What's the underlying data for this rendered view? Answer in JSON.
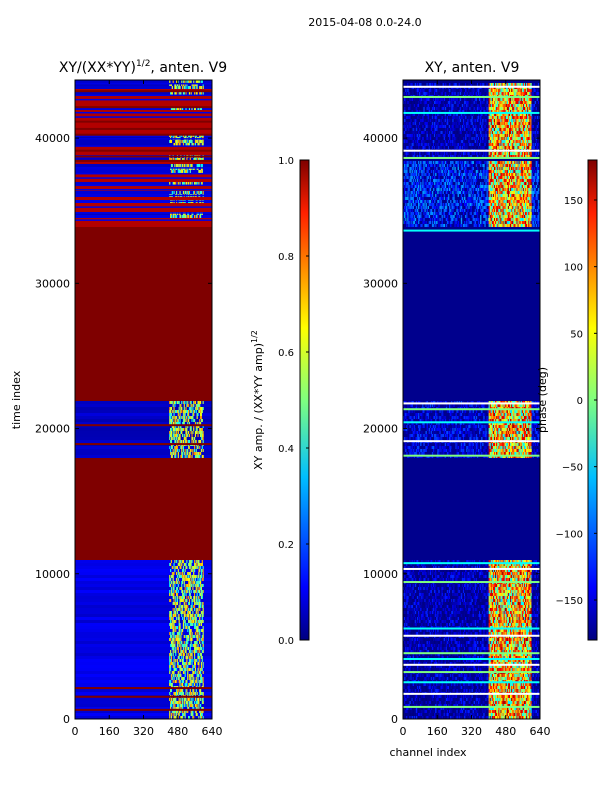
{
  "figure_title": "2015-04-08 0.0-24.0",
  "colors": {
    "jet": [
      "#00007f",
      "#0000ff",
      "#007fff",
      "#00ffff",
      "#7fff7f",
      "#ffff00",
      "#ff7f00",
      "#ff0000",
      "#7f0000"
    ]
  },
  "chart_data": [
    {
      "id": "left",
      "type": "heatmap",
      "title": "XY/(XX*YY)^(1/2), anten. V9",
      "title_main": "XY/(XX*YY)",
      "title_sup": "1/2",
      "title_rest": ", anten. V9",
      "xlabel": "",
      "ylabel": "time index",
      "xlim": [
        0,
        640
      ],
      "ylim": [
        0,
        44000
      ],
      "xticks": [
        0,
        160,
        320,
        480,
        640
      ],
      "xtick_labels": [
        "0",
        "160",
        "320",
        "480",
        "640"
      ],
      "yticks": [
        0,
        10000,
        20000,
        30000,
        40000
      ],
      "ytick_labels": [
        "0",
        "10000",
        "20000",
        "30000",
        "40000"
      ],
      "colorbar": {
        "label": "XY amp. / (XX*YY amp)^(1/2)",
        "label_main": "XY amp. / (XX*YY amp)",
        "label_sup": "1/2",
        "range": [
          0,
          1
        ],
        "ticks": [
          0,
          0.2,
          0.4,
          0.6,
          0.8,
          1.0
        ],
        "tick_labels": [
          "0.0",
          "0.2",
          "0.4",
          "0.6",
          "0.8",
          "1.0"
        ]
      },
      "background_value": 0.07,
      "bands": [
        {
          "y0": 34000,
          "y1": 44000,
          "value": 0.95,
          "note": "mostly saturated with many thin blue stripes"
        },
        {
          "y0": 22000,
          "y1": 34000,
          "value": 1.0
        },
        {
          "y0": 18000,
          "y1": 22000,
          "value": 0.07,
          "note": "blue with active channels 430-560"
        },
        {
          "y0": 11000,
          "y1": 18000,
          "value": 1.0
        },
        {
          "y0": 0,
          "y1": 11000,
          "value": 0.1,
          "note": "blue with active channels 440-600"
        }
      ],
      "thin_high_rows": [
        38500,
        38800,
        39200,
        40300,
        40700,
        41200,
        42200,
        43300,
        20300,
        19000,
        2200,
        1600,
        700
      ],
      "thin_low_rows": [
        43800,
        43000,
        42700,
        41800,
        41500,
        40000,
        39500,
        38000,
        37600,
        37300,
        36800,
        36500,
        36100,
        35700,
        35300,
        34900,
        34400
      ],
      "active_channels": [
        440,
        600
      ],
      "active_value_range": [
        0.35,
        0.75
      ]
    },
    {
      "id": "right",
      "type": "heatmap",
      "title": "XY, anten. V9",
      "xlabel": "channel index",
      "ylabel": "",
      "xlim": [
        0,
        640
      ],
      "ylim": [
        0,
        44000
      ],
      "xticks": [
        0,
        160,
        320,
        480,
        640
      ],
      "xtick_labels": [
        "0",
        "160",
        "320",
        "480",
        "640"
      ],
      "yticks": [
        0,
        10000,
        20000,
        30000,
        40000
      ],
      "ytick_labels": [
        "0",
        "10000",
        "20000",
        "30000",
        "40000"
      ],
      "colorbar": {
        "label": "phase (deg)",
        "range": [
          -180,
          180
        ],
        "ticks": [
          -150,
          -100,
          -50,
          0,
          50,
          100,
          150
        ],
        "tick_labels": [
          "−150",
          "−100",
          "−50",
          "0",
          "50",
          "100",
          "150"
        ]
      },
      "background_value": -175,
      "noisy_bands": [
        {
          "y0": 38800,
          "y1": 44000,
          "center": -150
        },
        {
          "y0": 34000,
          "y1": 38500,
          "center": -110
        },
        {
          "y0": 18000,
          "y1": 22000,
          "center": -140
        },
        {
          "y0": 0,
          "y1": 11000,
          "center": -155
        }
      ],
      "flat_bands": [
        {
          "y0": 22000,
          "y1": 34000,
          "value": -175
        },
        {
          "y0": 11000,
          "y1": 18000,
          "value": -175
        }
      ],
      "active_channels": [
        400,
        600
      ],
      "active_value_range": [
        30,
        170
      ],
      "stripe_rows": [
        43600,
        42900,
        41800,
        39200,
        38700,
        33700,
        21800,
        21400,
        20500,
        19200,
        18200,
        10800,
        10400,
        9500,
        6300,
        5800,
        4600,
        4200,
        3800,
        3300,
        2600,
        1800,
        900
      ]
    }
  ]
}
